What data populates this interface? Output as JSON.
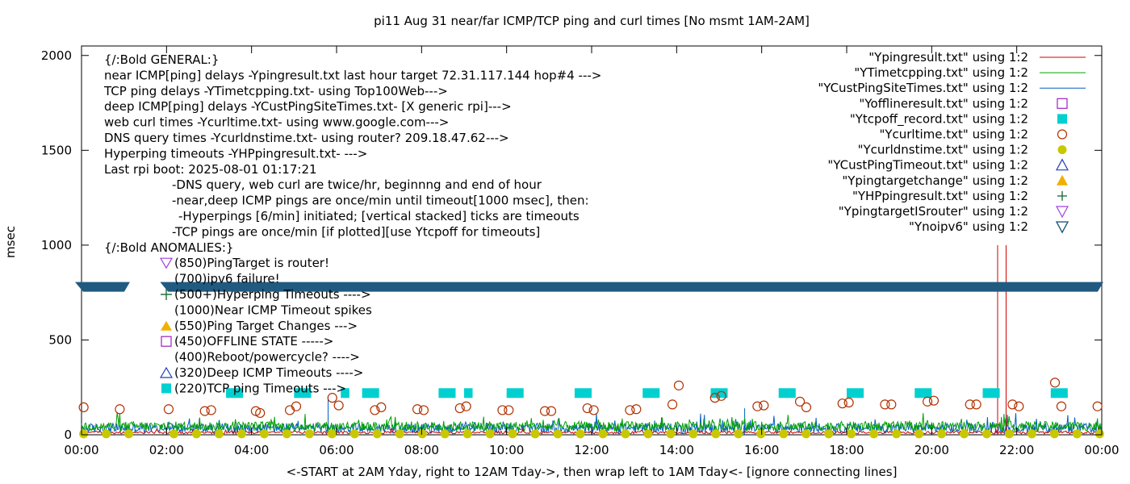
{
  "chart_data": {
    "type": "line",
    "title": "pi11 Aug 31  near/far ICMP/TCP ping and curl times [No msmt 1AM-2AM]",
    "xlabel": "<-START at 2AM Yday, right to 12AM Tday->, then wrap left to 1AM Tday<- [ignore connecting lines]",
    "ylabel": "msec",
    "xlim": [
      0,
      24
    ],
    "ylim": [
      0,
      2050
    ],
    "grid": false,
    "legend_position": "top-right",
    "x_ticks": [
      "00:00",
      "02:00",
      "04:00",
      "06:00",
      "08:00",
      "10:00",
      "12:00",
      "14:00",
      "16:00",
      "18:00",
      "20:00",
      "22:00",
      "00:00"
    ],
    "y_ticks": [
      0,
      500,
      1000,
      1500,
      2000
    ],
    "annotations": [
      "{/:Bold GENERAL:}",
      "near ICMP[ping] delays -Ypingresult.txt last hour target 72.31.117.144 hop#4 --->",
      "TCP ping delays -YTimetcpping.txt- using Top100Web--->",
      "deep ICMP[ping] delays -YCustPingSiteTimes.txt- [X generic rpi]--->",
      "web curl times -Ycurltime.txt- using www.google.com--->",
      "DNS query times -Ycurldnstime.txt- using router? 209.18.47.62--->",
      "Hyperping timeouts -YHPpingresult.txt- --->",
      "Last rpi boot: 2025-08-01 01:17:21",
      "-DNS query, web curl are twice/hr, beginnng and end of hour",
      "-near,deep ICMP pings are once/min until timeout[1000 msec], then:",
      "-Hyperpings [6/min] initiated; [vertical stacked] ticks are timeouts",
      "-TCP pings are once/min [if plotted][use Ytcpoff for timeouts]",
      "{/:Bold ANOMALIES:}",
      "(850)PingTarget is router!",
      "(700)ipv6 failure!",
      "(500+)Hyperping Timeouts ---->",
      "(1000)Near ICMP Timeout spikes",
      "(550)Ping Target Changes --->",
      "(450)OFFLINE STATE ----->",
      "(400)Reboot/powercycle? ---->",
      "(320)Deep ICMP Timeouts ---->",
      "(220)TCP ping Timeouts --->"
    ],
    "series": [
      {
        "name": "\"Ypingresult.txt\" using 1:2",
        "color": "#d00000",
        "style": "line",
        "typical_range": [
          5,
          20
        ],
        "spikes": [
          {
            "x": 21.55,
            "y": 1000
          },
          {
            "x": 21.75,
            "y": 1000
          }
        ]
      },
      {
        "name": "\"YTimetcpping.txt\" using 1:2",
        "color": "#00a000",
        "style": "line",
        "typical_range": [
          20,
          70
        ]
      },
      {
        "name": "\"YCustPingSiteTimes.txt\" using 1:2",
        "color": "#0060c0",
        "style": "line",
        "typical_range": [
          10,
          60
        ],
        "spikes": [
          {
            "x": 5.8,
            "y": 200
          },
          {
            "x": 15.6,
            "y": 140
          }
        ]
      },
      {
        "name": "\"Yofflineresult.txt\" using 1:2",
        "color": "#a020c0",
        "style": "open-square",
        "points": []
      },
      {
        "name": "\"Ytcpoff_record.txt\" using 1:2",
        "color": "#00d0d0",
        "style": "filled-square",
        "segments": [
          [
            3.4,
            3.8
          ],
          [
            5.0,
            5.4
          ],
          [
            6.1,
            6.3
          ],
          [
            6.6,
            7.0
          ],
          [
            8.4,
            8.8
          ],
          [
            9.0,
            9.2
          ],
          [
            10.0,
            10.4
          ],
          [
            11.6,
            12.0
          ],
          [
            13.2,
            13.6
          ],
          [
            14.8,
            15.2
          ],
          [
            16.4,
            16.8
          ],
          [
            18.0,
            18.4
          ],
          [
            19.6,
            20.0
          ],
          [
            21.2,
            21.6
          ],
          [
            22.8,
            23.2
          ]
        ],
        "y": 220
      },
      {
        "name": "\"Ycurltime.txt\" using 1:2",
        "color": "#b03000",
        "style": "open-circle",
        "points": [
          [
            0.05,
            145
          ],
          [
            0.9,
            135
          ],
          [
            2.05,
            135
          ],
          [
            2.9,
            125
          ],
          [
            3.05,
            130
          ],
          [
            4.1,
            125
          ],
          [
            4.2,
            115
          ],
          [
            4.9,
            130
          ],
          [
            5.05,
            150
          ],
          [
            5.9,
            195
          ],
          [
            6.05,
            155
          ],
          [
            6.9,
            130
          ],
          [
            7.05,
            145
          ],
          [
            7.9,
            135
          ],
          [
            8.05,
            130
          ],
          [
            8.9,
            140
          ],
          [
            9.05,
            150
          ],
          [
            9.9,
            130
          ],
          [
            10.05,
            130
          ],
          [
            10.9,
            125
          ],
          [
            11.05,
            125
          ],
          [
            11.9,
            140
          ],
          [
            12.05,
            130
          ],
          [
            12.9,
            130
          ],
          [
            13.05,
            135
          ],
          [
            13.9,
            160
          ],
          [
            14.05,
            260
          ],
          [
            14.9,
            195
          ],
          [
            15.05,
            205
          ],
          [
            15.9,
            150
          ],
          [
            16.05,
            155
          ],
          [
            16.9,
            175
          ],
          [
            17.05,
            145
          ],
          [
            17.9,
            165
          ],
          [
            18.05,
            170
          ],
          [
            18.9,
            160
          ],
          [
            19.05,
            160
          ],
          [
            19.9,
            175
          ],
          [
            20.05,
            180
          ],
          [
            20.9,
            160
          ],
          [
            21.05,
            160
          ],
          [
            21.9,
            160
          ],
          [
            22.05,
            150
          ],
          [
            22.9,
            275
          ],
          [
            23.05,
            150
          ],
          [
            23.9,
            150
          ]
        ]
      },
      {
        "name": "\"Ycurldnstime.txt\" using 1:2",
        "color": "#c8c800",
        "style": "filled-circle",
        "points_y": 5,
        "count": 46
      },
      {
        "name": "\"YCustPingTimeout.txt\" using 1:2",
        "color": "#2040c0",
        "style": "open-triangle-up",
        "points": []
      },
      {
        "name": "\"Ypingtargetchange\" using 1:2",
        "color": "#f0b000",
        "style": "filled-triangle-up",
        "points": []
      },
      {
        "name": "\"YHPpingresult.txt\" using 1:2",
        "color": "#207040",
        "style": "plus",
        "points": []
      },
      {
        "name": "\"YpingtargetISrouter\" using 1:2",
        "color": "#a040e0",
        "style": "open-triangle-down",
        "points": []
      },
      {
        "name": "\"Ynoipv6\" using 1:2",
        "color": "#205a80",
        "style": "filled-triangle-down",
        "y": 780,
        "segments": [
          [
            0.0,
            1.1
          ],
          [
            2.0,
            24.0
          ]
        ]
      }
    ]
  }
}
